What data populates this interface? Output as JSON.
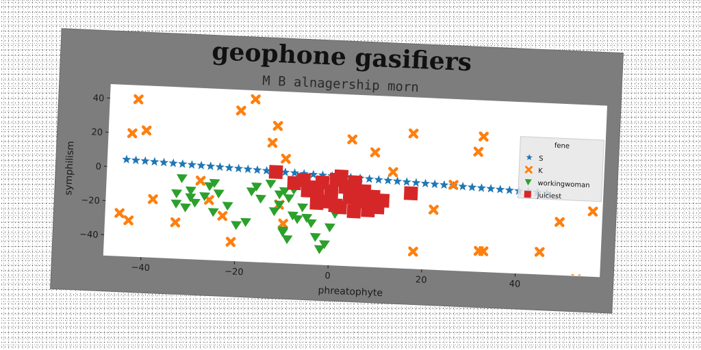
{
  "chart_data": {
    "type": "scatter",
    "title": "geophone gasifiers",
    "subtitle": "M B alnagership morn",
    "xlabel": "phreatophyte",
    "ylabel": "symphilism",
    "xlim": [
      -48,
      58
    ],
    "ylim": [
      -52,
      48
    ],
    "xticks": [
      -40,
      -20,
      0,
      20,
      40
    ],
    "yticks": [
      -40,
      -20,
      0,
      20,
      40
    ],
    "grid": false,
    "legend": {
      "title": "fene",
      "position": "upper right"
    },
    "colors": {
      "S": "#1f77b4",
      "K": "#ff7f0e",
      "workingwoman": "#2ca02c",
      "juiciest": "#d62728",
      "figure_bg": "#7d7d7d",
      "plot_bg": "#ffffff"
    },
    "series": [
      {
        "name": "S",
        "marker": "star",
        "x": [
          -44,
          -42,
          -40,
          -38,
          -36,
          -34,
          -32,
          -30,
          -28,
          -26,
          -24,
          -22,
          -20,
          -18,
          -16,
          -14,
          -12,
          -10,
          -8,
          -6,
          -4,
          -2,
          0,
          2,
          4,
          6,
          8,
          10,
          12,
          14,
          16,
          18,
          20,
          22,
          24,
          26,
          28,
          30,
          32,
          34,
          36,
          38,
          40,
          42,
          44,
          46
        ],
        "y": [
          4.5,
          4.3,
          4.1,
          3.9,
          3.7,
          3.5,
          3.3,
          3.1,
          2.9,
          2.7,
          2.5,
          2.3,
          2.1,
          1.9,
          1.7,
          1.5,
          1.3,
          1.1,
          0.9,
          0.7,
          0.5,
          0.3,
          0.1,
          -0.1,
          -0.3,
          -0.5,
          -0.7,
          -0.9,
          -1.1,
          -1.3,
          -1.5,
          -1.7,
          -1.9,
          -2.1,
          -2.3,
          -2.5,
          -2.7,
          -2.9,
          -3.1,
          -3.3,
          -3.5,
          -3.7,
          -3.9,
          -4.1,
          -4.3,
          -4.5
        ]
      },
      {
        "name": "K",
        "marker": "x",
        "x": [
          -42,
          -43,
          -40,
          -38,
          -45,
          -43,
          -33,
          -28,
          -26,
          -23,
          -21,
          -20,
          -17,
          -13,
          -12,
          -11,
          -10,
          -10,
          -3,
          1,
          4,
          9,
          9,
          13,
          17,
          18,
          22,
          26,
          31,
          32,
          32,
          33,
          44,
          45,
          49,
          53,
          56
        ],
        "y": [
          40,
          20,
          22,
          -18,
          -27,
          -31,
          -31,
          -6,
          -17,
          -26,
          -41,
          36,
          43,
          18,
          28,
          -18,
          9,
          -29,
          -57,
          -57,
          22,
          15,
          -57,
          4,
          27,
          -42,
          -17,
          -2,
          18,
          27,
          -40,
          -40,
          -62,
          -39,
          -21,
          -54,
          -14
        ]
      },
      {
        "name": "workingwoman",
        "marker": "triangle_down",
        "x": [
          -32,
          -33,
          -33,
          -31,
          -30,
          -29,
          -30,
          -27,
          -26,
          -25,
          -24,
          -25,
          -22,
          -20,
          -18,
          -17,
          -16,
          -15,
          -13,
          -12,
          -11,
          -10,
          -9,
          -8,
          -10,
          -9,
          -7,
          -6,
          -5,
          -4,
          -3,
          -2,
          -1,
          0,
          1,
          -11,
          -10,
          -8
        ],
        "y": [
          -5,
          -14,
          -20,
          -22,
          -16,
          -19,
          -12,
          -15,
          -9,
          -7,
          -13,
          -24,
          -20,
          -31,
          -29,
          -11,
          -8,
          -15,
          -6,
          -22,
          -18,
          -10,
          -14,
          -9,
          -34,
          -38,
          -26,
          -19,
          -25,
          -28,
          -36,
          -43,
          -40,
          -30,
          -22,
          -12,
          -33,
          -24
        ]
      },
      {
        "name": "juiciest",
        "marker": "square",
        "x": [
          -12,
          -8,
          -6,
          -4,
          -3,
          -2,
          -1,
          0,
          1,
          2,
          3,
          4,
          5,
          6,
          7,
          8,
          9,
          10,
          11,
          -5,
          0,
          2,
          4,
          6,
          8,
          -3,
          1,
          5,
          9,
          17
        ],
        "y": [
          1,
          -5,
          -3,
          -7,
          -11,
          -4,
          -15,
          -9,
          -2,
          -18,
          -6,
          -12,
          -20,
          -14,
          -8,
          -16,
          -11,
          -17,
          -13,
          -9,
          -13,
          0,
          -6,
          -10,
          -19,
          -16,
          -17,
          -3,
          -14,
          -8
        ]
      }
    ]
  }
}
